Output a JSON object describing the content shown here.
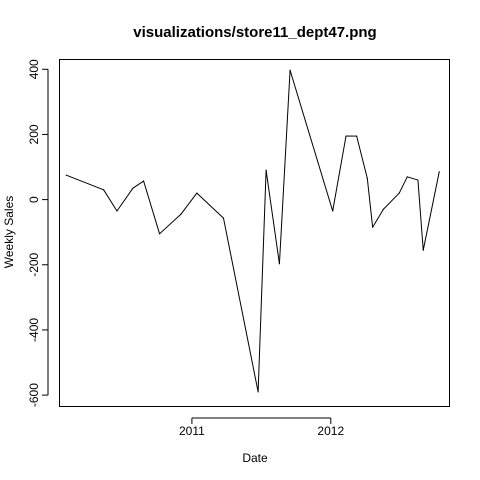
{
  "chart_data": {
    "type": "line",
    "title": "visualizations/store11_dept47.png",
    "xlabel": "Date",
    "ylabel": "Weekly Sales",
    "x_is_date": true,
    "xlim": [
      "2010-01-18",
      "2012-11-08"
    ],
    "ylim": [
      -635,
      430
    ],
    "x_ticks": [
      {
        "value": "2011-01-01",
        "label": "2011"
      },
      {
        "value": "2012-01-01",
        "label": "2012"
      }
    ],
    "y_ticks": [
      -600,
      -400,
      -200,
      0,
      200,
      400
    ],
    "grid": false,
    "series": [
      {
        "color": "#000000",
        "points": [
          {
            "x": "2010-02-05",
            "y": 75
          },
          {
            "x": "2010-05-14",
            "y": 30
          },
          {
            "x": "2010-06-18",
            "y": -35
          },
          {
            "x": "2010-07-30",
            "y": 35
          },
          {
            "x": "2010-08-27",
            "y": 57
          },
          {
            "x": "2010-10-08",
            "y": -105
          },
          {
            "x": "2010-12-03",
            "y": -45
          },
          {
            "x": "2011-01-14",
            "y": 20
          },
          {
            "x": "2011-03-25",
            "y": -57
          },
          {
            "x": "2011-06-24",
            "y": -590
          },
          {
            "x": "2011-07-15",
            "y": 90
          },
          {
            "x": "2011-08-19",
            "y": -197
          },
          {
            "x": "2011-09-16",
            "y": 397
          },
          {
            "x": "2012-01-06",
            "y": -35
          },
          {
            "x": "2012-02-10",
            "y": 195
          },
          {
            "x": "2012-03-09",
            "y": 195
          },
          {
            "x": "2012-04-06",
            "y": 65
          },
          {
            "x": "2012-04-20",
            "y": -85
          },
          {
            "x": "2012-05-18",
            "y": -30
          },
          {
            "x": "2012-06-29",
            "y": 20
          },
          {
            "x": "2012-07-20",
            "y": 70
          },
          {
            "x": "2012-08-17",
            "y": 60
          },
          {
            "x": "2012-08-31",
            "y": -155
          },
          {
            "x": "2012-10-12",
            "y": 85
          }
        ]
      }
    ]
  }
}
